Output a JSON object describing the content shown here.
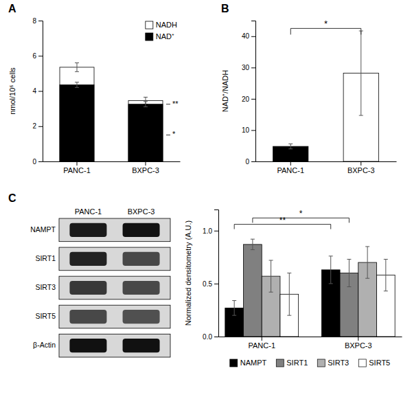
{
  "chart_data": [
    {
      "type": "overlay",
      "title": "A",
      "categories": [
        "PANC-1",
        "BXPC-3"
      ],
      "series": [
        {
          "name": "NADH",
          "color": "white",
          "values": [
            5.35,
            3.45
          ],
          "errors": [
            0.25,
            0.2
          ]
        },
        {
          "name": "NAD⁺",
          "color": "black",
          "values": [
            4.35,
            3.25
          ],
          "errors": [
            0.15,
            0.15
          ]
        }
      ],
      "ylabel": "nmol/10⁶ cells",
      "ylim": [
        0,
        8
      ],
      "yticks": [
        0,
        2,
        4,
        6,
        8
      ],
      "legend": "upper right",
      "annotations": [
        {
          "text": "**",
          "y": 3.25,
          "category": "BXPC-3"
        },
        {
          "text": "*",
          "y": 1.5,
          "category": "BXPC-3"
        }
      ]
    },
    {
      "type": "bar",
      "title": "B",
      "categories": [
        "PANC-1",
        "BXPC-3"
      ],
      "values": [
        4.8,
        28.2
      ],
      "errors": [
        0.8,
        13.5
      ],
      "colors": [
        "black",
        "white"
      ],
      "ylabel": "NAD⁺/NADH",
      "ylim": [
        0,
        45
      ],
      "yticks": [
        0,
        10,
        20,
        30,
        40
      ],
      "annotations": [
        {
          "text": "*",
          "y": 42.5
        }
      ]
    },
    {
      "type": "blot",
      "title": "C",
      "categories": [
        "NAMPT",
        "SIRT1",
        "SIRT3",
        "SIRT5",
        "β-Actin"
      ],
      "series": [
        {
          "name": "PANC-1",
          "colors": [
            "#1a1a1a",
            "#222222",
            "#383838",
            "#484848",
            "#111111"
          ]
        },
        {
          "name": "BXPC-3",
          "colors": [
            "#111111",
            "#484848",
            "#484848",
            "#505050",
            "#111111"
          ]
        }
      ]
    },
    {
      "type": "bar",
      "categories": [
        "PANC-1",
        "BXPC-3"
      ],
      "series": [
        {
          "name": "NAMPT",
          "color": "#000000",
          "values": [
            0.27,
            0.63
          ],
          "errors": [
            0.07,
            0.13
          ]
        },
        {
          "name": "SIRT1",
          "color": "#808080",
          "values": [
            0.87,
            0.6
          ],
          "errors": [
            0.05,
            0.13
          ]
        },
        {
          "name": "SIRT3",
          "color": "#b0b0b0",
          "values": [
            0.57,
            0.7
          ],
          "errors": [
            0.15,
            0.15
          ]
        },
        {
          "name": "SIRT5",
          "color": "#ffffff",
          "values": [
            0.4,
            0.58
          ],
          "errors": [
            0.2,
            0.15
          ]
        }
      ],
      "ylabel": "Normalized densitometry (A.U.)",
      "ylim": [
        0,
        1.2
      ],
      "yticks": [
        {
          "value": 0,
          "label": "0.0"
        },
        0.5,
        {
          "value": 1,
          "label": "1.0"
        }
      ],
      "legend": "bottom",
      "annotations": [
        {
          "text": "**",
          "y": 1.06,
          "series": "NAMPT"
        },
        {
          "text": "*",
          "y": 1.12,
          "series": "SIRT1"
        }
      ]
    }
  ]
}
